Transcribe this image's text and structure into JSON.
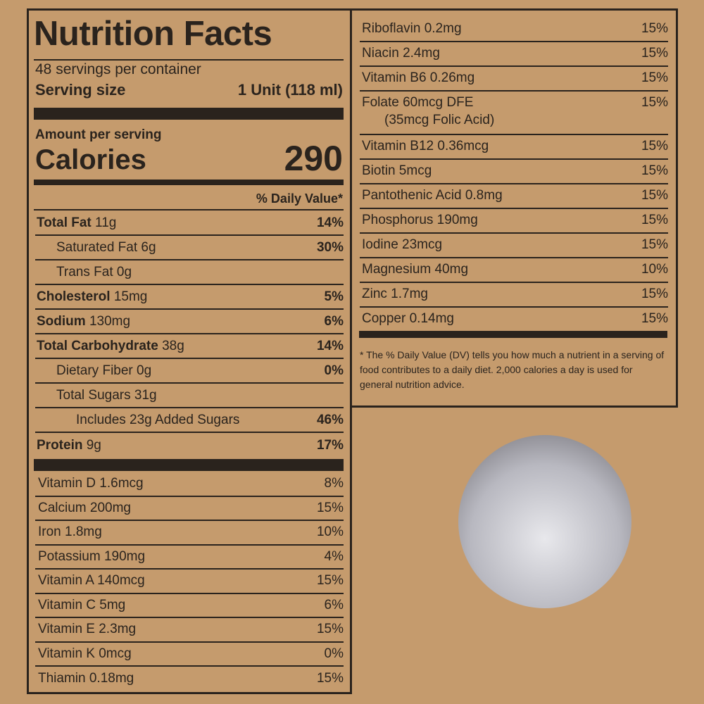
{
  "header": {
    "title": "Nutrition Facts",
    "servings": "48 servings per container",
    "serving_size_label": "Serving size",
    "serving_size_value": "1 Unit (118 ml)",
    "amount_per_serving": "Amount per serving",
    "calories_label": "Calories",
    "calories_value": "290",
    "daily_value_header": "% Daily Value*"
  },
  "nutrients": [
    {
      "name": "Total Fat",
      "amount": "11g",
      "dv": "14%",
      "bold": true,
      "indent": 0
    },
    {
      "name": "Saturated Fat",
      "amount": "6g",
      "dv": "30%",
      "bold": false,
      "indent": 1
    },
    {
      "name": "Trans Fat",
      "amount": "0g",
      "bold": false,
      "indent": 1
    },
    {
      "name": "Cholesterol",
      "amount": "15mg",
      "dv": "5%",
      "bold": true,
      "indent": 0
    },
    {
      "name": "Sodium",
      "amount": "130mg",
      "dv": "6%",
      "bold": true,
      "indent": 0
    },
    {
      "name": "Total Carbohydrate",
      "amount": "38g",
      "dv": "14%",
      "bold": true,
      "indent": 0
    },
    {
      "name": "Dietary Fiber",
      "amount": "0g",
      "dv": "0%",
      "bold": false,
      "indent": 1
    },
    {
      "name": "Total Sugars",
      "amount": "31g",
      "bold": false,
      "indent": 1
    },
    {
      "name": "Includes 23g Added Sugars",
      "dv": "46%",
      "bold": false,
      "indent": 2
    },
    {
      "name": "Protein",
      "amount": "9g",
      "dv": "17%",
      "bold": true,
      "indent": 0
    }
  ],
  "vitamins_left": [
    {
      "label": "Vitamin D 1.6mcg",
      "dv": "8%"
    },
    {
      "label": "Calcium 200mg",
      "dv": "15%"
    },
    {
      "label": "Iron 1.8mg",
      "dv": "10%"
    },
    {
      "label": "Potassium 190mg",
      "dv": "4%"
    },
    {
      "label": "Vitamin A 140mcg",
      "dv": "15%"
    },
    {
      "label": "Vitamin C 5mg",
      "dv": "6%"
    },
    {
      "label": "Vitamin E 2.3mg",
      "dv": "15%"
    },
    {
      "label": "Vitamin K 0mcg",
      "dv": "0%"
    },
    {
      "label": "Thiamin 0.18mg",
      "dv": "15%"
    }
  ],
  "vitamins_right": [
    {
      "label": "Riboflavin 0.2mg",
      "dv": "15%"
    },
    {
      "label": "Niacin 2.4mg",
      "dv": "15%"
    },
    {
      "label": "Vitamin B6 0.26mg",
      "dv": "15%"
    },
    {
      "label": "Folate 60mcg DFE",
      "sub": "(35mcg Folic Acid)",
      "dv": "15%"
    },
    {
      "label": "Vitamin B12 0.36mcg",
      "dv": "15%"
    },
    {
      "label": "Biotin 5mcg",
      "dv": "15%"
    },
    {
      "label": "Pantothenic Acid 0.8mg",
      "dv": "15%"
    },
    {
      "label": "Phosphorus 190mg",
      "dv": "15%"
    },
    {
      "label": "Iodine 23mcg",
      "dv": "15%"
    },
    {
      "label": "Magnesium 40mg",
      "dv": "10%"
    },
    {
      "label": "Zinc 1.7mg",
      "dv": "15%"
    },
    {
      "label": "Copper 0.14mg",
      "dv": "15%"
    }
  ],
  "footnote": "* The % Daily Value (DV) tells you how much a nutrient in a serving of food contributes to a daily diet. 2,000 calories a day is used for general nutrition advice."
}
